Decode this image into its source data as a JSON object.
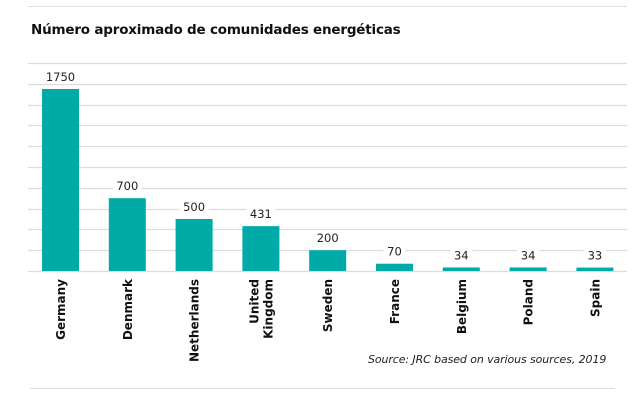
{
  "chart_data": {
    "type": "bar",
    "title": "Número aproximado de comunidades energéticas",
    "categories": [
      "Germany",
      "Denmark",
      "Netherlands",
      "United Kingdom",
      "Sweden",
      "France",
      "Belgium",
      "Poland",
      "Spain"
    ],
    "category_lines": [
      [
        "Germany"
      ],
      [
        "Denmark"
      ],
      [
        "Netherlands"
      ],
      [
        "United",
        "Kingdom"
      ],
      [
        "Sweden"
      ],
      [
        "France"
      ],
      [
        "Belgium"
      ],
      [
        "Poland"
      ],
      [
        "Spain"
      ]
    ],
    "values": [
      1750,
      700,
      500,
      431,
      200,
      70,
      34,
      34,
      33
    ],
    "data_labels": [
      "1750",
      "700",
      "500",
      "431",
      "200",
      "70",
      "34",
      "34",
      "33"
    ],
    "xlabel": "",
    "ylabel": "",
    "ylim": [
      0,
      2000
    ],
    "grid_step": 200,
    "grid": true,
    "legend": "none",
    "bar_color": "#00aaa7",
    "source": "Source: JRC based on various sources, 2019"
  }
}
